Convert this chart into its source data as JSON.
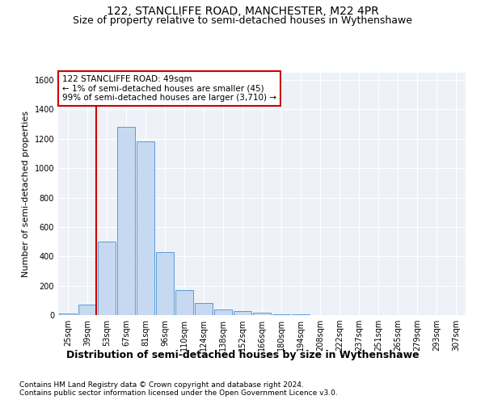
{
  "title": "122, STANCLIFFE ROAD, MANCHESTER, M22 4PR",
  "subtitle": "Size of property relative to semi-detached houses in Wythenshawe",
  "xlabel": "Distribution of semi-detached houses by size in Wythenshawe",
  "ylabel": "Number of semi-detached properties",
  "annotation_lines": [
    "122 STANCLIFFE ROAD: 49sqm",
    "← 1% of semi-detached houses are smaller (45)",
    "99% of semi-detached houses are larger (3,710) →"
  ],
  "footnote1": "Contains HM Land Registry data © Crown copyright and database right 2024.",
  "footnote2": "Contains public sector information licensed under the Open Government Licence v3.0.",
  "bar_labels": [
    "25sqm",
    "39sqm",
    "53sqm",
    "67sqm",
    "81sqm",
    "96sqm",
    "110sqm",
    "124sqm",
    "138sqm",
    "152sqm",
    "166sqm",
    "180sqm",
    "194sqm",
    "208sqm",
    "222sqm",
    "237sqm",
    "251sqm",
    "265sqm",
    "279sqm",
    "293sqm",
    "307sqm"
  ],
  "bar_values": [
    10,
    70,
    500,
    1280,
    1180,
    430,
    170,
    85,
    40,
    30,
    18,
    7,
    3,
    2,
    1,
    1,
    0,
    0,
    0,
    0,
    0
  ],
  "bar_color": "#c6d9f0",
  "bar_edge_color": "#5b9bd5",
  "vline_x_idx": 1,
  "vline_color": "#cc0000",
  "ylim": [
    0,
    1650
  ],
  "yticks": [
    0,
    200,
    400,
    600,
    800,
    1000,
    1200,
    1400,
    1600
  ],
  "annotation_box_color": "#cc0000",
  "bg_color": "#eef2f8",
  "grid_color": "#ffffff",
  "title_fontsize": 10,
  "subtitle_fontsize": 9,
  "ylabel_fontsize": 8,
  "xlabel_fontsize": 9,
  "tick_fontsize": 7,
  "annot_fontsize": 7.5,
  "footnote_fontsize": 6.5
}
